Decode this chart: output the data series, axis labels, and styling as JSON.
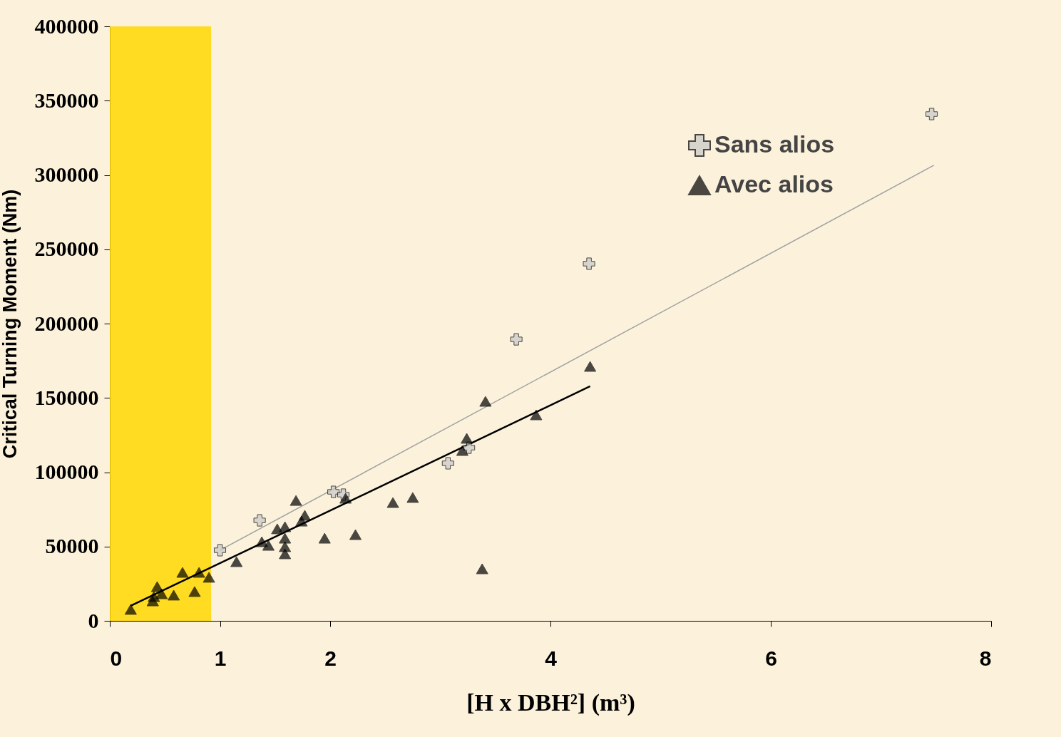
{
  "chart_data": {
    "type": "scatter",
    "xlabel": "[H x DBH²] (m³)",
    "ylabel": "Critical Turning Moment (Nm)",
    "xlim": [
      0,
      8
    ],
    "xticks": [
      0,
      1,
      2,
      4,
      6,
      8
    ],
    "ylim": [
      0,
      400000
    ],
    "yticks": [
      0,
      50000,
      100000,
      150000,
      200000,
      250000,
      300000,
      350000,
      400000
    ],
    "grid": false,
    "legend": "top right",
    "bands": [
      {
        "axis": "x",
        "from": 0,
        "to": 0.92,
        "color": "#ffd700"
      }
    ],
    "series": [
      {
        "name": "Sans alios",
        "marker": "cross",
        "color": "#c8c8c8",
        "x": [
          1.0,
          1.36,
          2.03,
          2.12,
          3.07,
          3.26,
          3.69,
          4.35,
          7.46
        ],
        "values": [
          47500,
          67600,
          86800,
          84900,
          106000,
          116500,
          189400,
          240300,
          341000
        ]
      },
      {
        "name": "Avec alios",
        "marker": "triangle",
        "color": "#000000",
        "x": [
          0.19,
          0.39,
          0.43,
          0.4,
          0.47,
          0.58,
          0.66,
          0.77,
          0.81,
          0.9,
          1.15,
          1.38,
          1.44,
          1.52,
          1.59,
          1.59,
          1.59,
          1.59,
          1.69,
          1.77,
          1.74,
          1.95,
          2.23,
          2.14,
          2.57,
          2.75,
          3.2,
          3.24,
          3.41,
          3.38,
          3.87,
          4.36
        ],
        "values": [
          7700,
          13400,
          23000,
          16300,
          18200,
          17300,
          32600,
          19700,
          32600,
          29300,
          39800,
          53200,
          50800,
          61900,
          63300,
          55600,
          49900,
          45100,
          81000,
          71000,
          67100,
          55600,
          58000,
          82500,
          79600,
          83000,
          114600,
          122800,
          147700,
          35000,
          138600,
          171200
        ]
      },
      {
        "type": "line",
        "color": "#a0a0a0",
        "x": [
          1.0,
          7.48
        ],
        "values": [
          47500,
          306500
        ]
      },
      {
        "type": "line",
        "color": "#000000",
        "x": [
          0.19,
          4.36
        ],
        "values": [
          10100,
          157800
        ]
      }
    ]
  }
}
